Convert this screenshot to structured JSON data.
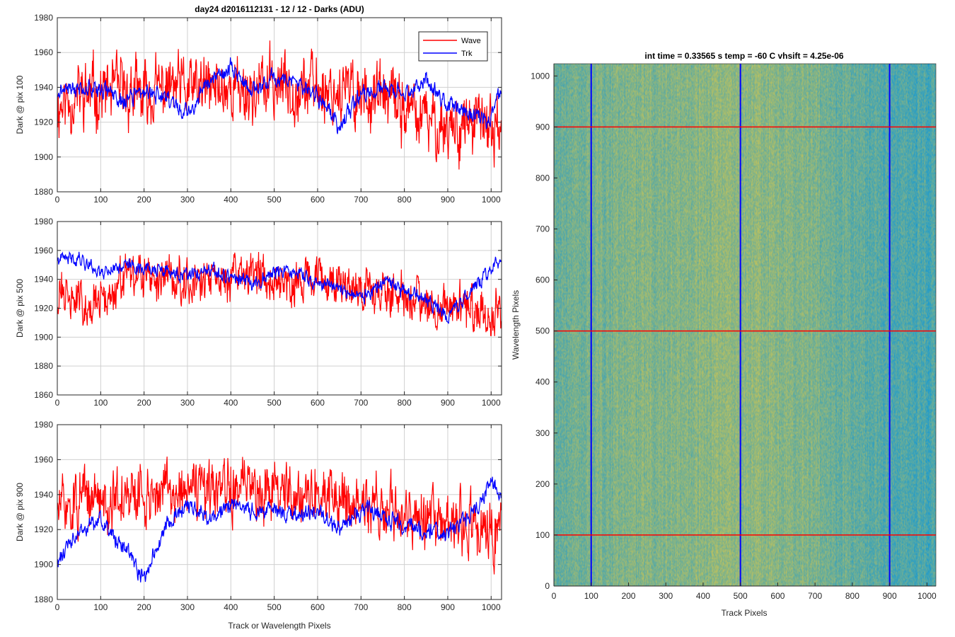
{
  "figure": {
    "title": "day24 d2016112131 - 12 / 12 - Darks (ADU)",
    "shared_xlabel": "Track or Wavelength Pixels"
  },
  "colors": {
    "wave": "#ff0000",
    "trk": "#0000ff",
    "image_low": "#1a9ad0",
    "image_high": "#c3c35a",
    "grid": "#d0d0d0"
  },
  "chart_data": [
    {
      "type": "line",
      "ylabel": "Dark @ pix 100",
      "xlim": [
        0,
        1024
      ],
      "ylim": [
        1880,
        1980
      ],
      "xticks": [
        0,
        100,
        200,
        300,
        400,
        500,
        600,
        700,
        800,
        900,
        1000
      ],
      "yticks": [
        1880,
        1900,
        1920,
        1940,
        1960,
        1980
      ],
      "grid": true,
      "legend": {
        "placement": "top-right",
        "entries": [
          "Wave",
          "Trk"
        ]
      },
      "series": [
        {
          "name": "Wave",
          "color": "#ff0000",
          "x": [
            0,
            50,
            100,
            150,
            200,
            250,
            300,
            350,
            400,
            450,
            500,
            550,
            600,
            650,
            700,
            750,
            800,
            850,
            900,
            950,
            1000,
            1024
          ],
          "y": [
            1930,
            1935,
            1937,
            1938,
            1934,
            1940,
            1938,
            1939,
            1940,
            1937,
            1942,
            1941,
            1940,
            1938,
            1937,
            1934,
            1928,
            1920,
            1918,
            1919,
            1917,
            1920
          ],
          "noise": 13,
          "seed": 11
        },
        {
          "name": "Trk",
          "color": "#0000ff",
          "x": [
            0,
            50,
            100,
            150,
            200,
            250,
            300,
            350,
            400,
            450,
            500,
            550,
            600,
            650,
            700,
            750,
            800,
            850,
            900,
            950,
            1000,
            1024
          ],
          "y": [
            1938,
            1940,
            1940,
            1932,
            1937,
            1935,
            1925,
            1943,
            1952,
            1937,
            1947,
            1942,
            1935,
            1918,
            1935,
            1940,
            1935,
            1945,
            1930,
            1925,
            1922,
            1938
          ],
          "noise": 4,
          "seed": 21
        }
      ]
    },
    {
      "type": "line",
      "ylabel": "Dark @ pix 500",
      "xlim": [
        0,
        1024
      ],
      "ylim": [
        1860,
        1980
      ],
      "xticks": [
        0,
        100,
        200,
        300,
        400,
        500,
        600,
        700,
        800,
        900,
        1000
      ],
      "yticks": [
        1860,
        1880,
        1900,
        1920,
        1940,
        1960,
        1980
      ],
      "grid": true,
      "series": [
        {
          "name": "Wave",
          "color": "#ff0000",
          "x": [
            0,
            50,
            100,
            150,
            200,
            250,
            300,
            350,
            400,
            450,
            500,
            550,
            600,
            650,
            700,
            750,
            800,
            850,
            900,
            950,
            1000,
            1024
          ],
          "y": [
            1930,
            1925,
            1922,
            1938,
            1940,
            1942,
            1940,
            1938,
            1942,
            1944,
            1942,
            1940,
            1938,
            1938,
            1935,
            1932,
            1928,
            1925,
            1922,
            1918,
            1915,
            1912
          ],
          "noise": 11,
          "seed": 31
        },
        {
          "name": "Trk",
          "color": "#0000ff",
          "x": [
            0,
            50,
            100,
            150,
            200,
            250,
            300,
            350,
            400,
            450,
            500,
            550,
            600,
            650,
            700,
            750,
            800,
            850,
            900,
            950,
            1000,
            1024
          ],
          "y": [
            1953,
            1955,
            1945,
            1950,
            1948,
            1945,
            1942,
            1945,
            1942,
            1937,
            1945,
            1945,
            1937,
            1935,
            1927,
            1937,
            1932,
            1925,
            1915,
            1930,
            1948,
            1955
          ],
          "noise": 4,
          "seed": 41
        }
      ]
    },
    {
      "type": "line",
      "ylabel": "Dark @ pix 900",
      "xlabel": "Track or Wavelength Pixels",
      "xlim": [
        0,
        1024
      ],
      "ylim": [
        1880,
        1980
      ],
      "xticks": [
        0,
        100,
        200,
        300,
        400,
        500,
        600,
        700,
        800,
        900,
        1000
      ],
      "yticks": [
        1880,
        1900,
        1920,
        1940,
        1960,
        1980
      ],
      "grid": true,
      "series": [
        {
          "name": "Wave",
          "color": "#ff0000",
          "x": [
            0,
            50,
            100,
            150,
            200,
            250,
            300,
            350,
            400,
            450,
            500,
            550,
            600,
            650,
            700,
            750,
            800,
            850,
            900,
            950,
            1000,
            1024
          ],
          "y": [
            1932,
            1935,
            1938,
            1937,
            1940,
            1942,
            1942,
            1940,
            1942,
            1945,
            1944,
            1942,
            1940,
            1938,
            1934,
            1932,
            1930,
            1926,
            1922,
            1920,
            1917,
            1922
          ],
          "noise": 12,
          "seed": 51
        },
        {
          "name": "Trk",
          "color": "#0000ff",
          "x": [
            0,
            50,
            100,
            150,
            200,
            250,
            300,
            350,
            400,
            450,
            500,
            550,
            600,
            650,
            700,
            750,
            800,
            850,
            900,
            950,
            1000,
            1024
          ],
          "y": [
            1902,
            1918,
            1925,
            1910,
            1892,
            1922,
            1935,
            1925,
            1935,
            1930,
            1932,
            1928,
            1930,
            1920,
            1932,
            1927,
            1922,
            1920,
            1918,
            1927,
            1948,
            1942
          ],
          "noise": 4,
          "seed": 61
        }
      ]
    },
    {
      "type": "heatmap",
      "title": "int time = 0.33565 s    temp = -60 C    vhsift = 4.25e-06",
      "xlabel": "Track Pixels",
      "ylabel": "Wavelength Pixels",
      "xlim": [
        0,
        1024
      ],
      "ylim": [
        0,
        1024
      ],
      "xticks": [
        0,
        100,
        200,
        300,
        400,
        500,
        600,
        700,
        800,
        900,
        1000
      ],
      "yticks": [
        0,
        100,
        200,
        300,
        400,
        500,
        600,
        700,
        800,
        900,
        1000
      ],
      "grid": false,
      "column_profile": {
        "x": [
          0,
          50,
          100,
          150,
          200,
          250,
          300,
          350,
          400,
          450,
          500,
          550,
          600,
          650,
          700,
          750,
          800,
          850,
          900,
          950,
          1000,
          1024
        ],
        "level": [
          0.45,
          0.5,
          0.55,
          0.58,
          0.6,
          0.62,
          0.62,
          0.64,
          0.66,
          0.72,
          0.7,
          0.66,
          0.65,
          0.62,
          0.58,
          0.5,
          0.45,
          0.4,
          0.35,
          0.3,
          0.28,
          0.3
        ]
      },
      "vertical_markers": {
        "color": "#0000ff",
        "x": [
          100,
          500,
          900
        ]
      },
      "horizontal_markers": {
        "color": "#ff0000",
        "y": [
          100,
          500,
          900
        ]
      }
    }
  ]
}
